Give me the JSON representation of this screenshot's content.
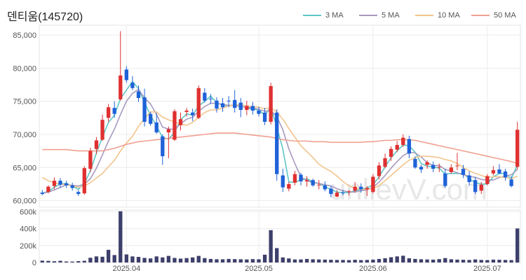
{
  "title": "덴티움(145720)",
  "watermark": "unlievV.com",
  "chart_data": [
    {
      "type": "candlestick",
      "title": "덴티움(145720)",
      "ylim": [
        59000,
        86500
      ],
      "yticks": [
        60000,
        65000,
        70000,
        75000,
        80000,
        85000
      ],
      "ytick_labels": [
        "60,000",
        "65,000",
        "70,000",
        "75,000",
        "80,000",
        "85,000"
      ],
      "xtick_labels": [
        "2025.04",
        "2025.05",
        "2025.06",
        "2025.07"
      ],
      "xtick_index": [
        14,
        36,
        55,
        74
      ],
      "legend": {
        "placement": "top-right",
        "items": [
          {
            "name": "3 MA",
            "color": "#5fc6c6"
          },
          {
            "name": "5 MA",
            "color": "#a89abf"
          },
          {
            "name": "10 MA",
            "color": "#f2c48c"
          },
          {
            "name": "50 MA",
            "color": "#f0a090"
          }
        ]
      },
      "colors": {
        "up": "#e03030",
        "down": "#1f62d8"
      },
      "candles": [
        [
          61200,
          61600,
          60800,
          61000
        ],
        [
          61300,
          62300,
          61100,
          62100
        ],
        [
          62200,
          63500,
          61700,
          63000
        ],
        [
          63000,
          63400,
          61900,
          62400
        ],
        [
          62600,
          63000,
          61900,
          62300
        ],
        [
          62300,
          62700,
          61500,
          61900
        ],
        [
          61300,
          61600,
          60700,
          61000
        ],
        [
          61100,
          65200,
          60900,
          64900
        ],
        [
          64800,
          68000,
          64300,
          67500
        ],
        [
          67800,
          69600,
          67000,
          69100
        ],
        [
          69200,
          73000,
          69000,
          72200
        ],
        [
          72500,
          74600,
          71900,
          74100
        ],
        [
          74000,
          75000,
          72500,
          73100
        ],
        [
          75300,
          85600,
          75100,
          78900
        ],
        [
          79800,
          80300,
          77800,
          78200
        ],
        [
          77800,
          78800,
          76700,
          77000
        ],
        [
          76500,
          77400,
          74900,
          75500
        ],
        [
          75600,
          76900,
          71200,
          71900
        ],
        [
          73100,
          73400,
          71300,
          71600
        ],
        [
          71800,
          73200,
          70100,
          70300
        ],
        [
          69700,
          70000,
          65400,
          66700
        ],
        [
          70300,
          71200,
          66400,
          70800
        ],
        [
          69200,
          73800,
          69000,
          73500
        ],
        [
          71400,
          73300,
          70600,
          72300
        ],
        [
          73400,
          74000,
          72700,
          73600
        ],
        [
          73300,
          73900,
          72000,
          72900
        ],
        [
          72500,
          77400,
          72300,
          77000
        ],
        [
          76300,
          77000,
          74800,
          75100
        ],
        [
          75400,
          76100,
          74600,
          75300
        ],
        [
          75100,
          75600,
          73300,
          73900
        ],
        [
          74700,
          75500,
          73400,
          74100
        ],
        [
          75100,
          75800,
          74100,
          75000
        ],
        [
          75200,
          76700,
          73300,
          74000
        ],
        [
          74800,
          75500,
          72600,
          73700
        ],
        [
          73700,
          75100,
          72900,
          74300
        ],
        [
          74300,
          74900,
          73000,
          73600
        ],
        [
          73600,
          74200,
          72700,
          73100
        ],
        [
          73300,
          74000,
          71400,
          71900
        ],
        [
          71900,
          77800,
          71500,
          77300
        ],
        [
          73300,
          73800,
          63000,
          64000
        ],
        [
          63800,
          64800,
          61300,
          62000
        ],
        [
          61800,
          62800,
          61400,
          62500
        ],
        [
          62700,
          64500,
          62300,
          64000
        ],
        [
          63900,
          64200,
          62300,
          62900
        ],
        [
          62900,
          63700,
          62100,
          63100
        ],
        [
          63100,
          63300,
          62100,
          62300
        ],
        [
          62300,
          63100,
          61700,
          62400
        ],
        [
          62300,
          62900,
          61400,
          61700
        ],
        [
          61800,
          62200,
          60500,
          61000
        ],
        [
          60600,
          61600,
          60500,
          61200
        ],
        [
          61200,
          61600,
          60800,
          61100
        ],
        [
          61300,
          61600,
          60800,
          61400
        ],
        [
          61500,
          62800,
          61200,
          62100
        ],
        [
          62100,
          62600,
          61200,
          61700
        ],
        [
          61700,
          62200,
          60700,
          61900
        ],
        [
          61300,
          64000,
          61100,
          63600
        ],
        [
          63700,
          65800,
          63200,
          65300
        ],
        [
          65100,
          67100,
          64900,
          66400
        ],
        [
          66600,
          68200,
          66000,
          67800
        ],
        [
          67700,
          69000,
          67300,
          68400
        ],
        [
          68400,
          70000,
          68100,
          69500
        ],
        [
          69300,
          69800,
          66400,
          67100
        ],
        [
          66300,
          66700,
          64800,
          65000
        ],
        [
          65100,
          65400,
          64200,
          64700
        ],
        [
          65400,
          66100,
          64800,
          65800
        ],
        [
          65400,
          65900,
          64300,
          64800
        ],
        [
          65000,
          65600,
          64300,
          65100
        ],
        [
          64100,
          64800,
          61900,
          62200
        ],
        [
          64300,
          65500,
          64100,
          65000
        ],
        [
          65200,
          67200,
          64600,
          65300
        ],
        [
          64800,
          65400,
          63400,
          63900
        ],
        [
          63800,
          64400,
          62300,
          62800
        ],
        [
          63100,
          63600,
          61000,
          61300
        ],
        [
          61500,
          62800,
          61000,
          62400
        ],
        [
          62500,
          64000,
          62300,
          63700
        ],
        [
          64100,
          65200,
          63800,
          64600
        ],
        [
          64700,
          65500,
          64000,
          64100
        ],
        [
          64400,
          64800,
          63000,
          63500
        ],
        [
          63200,
          63700,
          62000,
          62200
        ],
        [
          65100,
          71900,
          64700,
          70700
        ]
      ],
      "ma": {
        "3 MA": [
          61100,
          61400,
          62000,
          62500,
          62600,
          62200,
          61700,
          62600,
          64500,
          67200,
          69600,
          71800,
          72900,
          75400,
          76700,
          78000,
          76900,
          74800,
          72900,
          71300,
          69500,
          69300,
          70300,
          72200,
          73100,
          72900,
          74300,
          75000,
          75800,
          74800,
          74400,
          74300,
          74400,
          74300,
          74000,
          73800,
          73700,
          72900,
          74100,
          71100,
          67800,
          62800,
          62800,
          63100,
          63300,
          62800,
          62600,
          62100,
          61700,
          61300,
          61200,
          61200,
          61500,
          61700,
          61900,
          62400,
          63600,
          65100,
          66500,
          67500,
          68400,
          68300,
          67300,
          65600,
          65200,
          65100,
          64900,
          64000,
          64100,
          64100,
          64100,
          63300,
          62700,
          62500,
          62500,
          63600,
          64100,
          64100,
          63300,
          65400
        ],
        "5 MA": [
          61100,
          61300,
          61600,
          62000,
          62400,
          62300,
          62200,
          62500,
          63300,
          64900,
          66900,
          69000,
          70800,
          73000,
          75000,
          76200,
          76800,
          75500,
          74600,
          73000,
          71100,
          70800,
          70800,
          71600,
          72300,
          72600,
          73500,
          74200,
          74700,
          74700,
          74500,
          74400,
          74400,
          74200,
          74100,
          74000,
          73800,
          73500,
          73600,
          72700,
          70700,
          67800,
          65600,
          63600,
          63000,
          62700,
          62600,
          62400,
          62200,
          61800,
          61500,
          61300,
          61300,
          61500,
          61600,
          62000,
          62800,
          63800,
          64900,
          65900,
          66800,
          67300,
          67200,
          66600,
          65700,
          65300,
          65300,
          64700,
          64500,
          64200,
          63900,
          63700,
          63500,
          63200,
          63100,
          63100,
          63500,
          63700,
          63900,
          64700
        ],
        "10 MA": [
          63500,
          63000,
          62700,
          62500,
          62400,
          62200,
          62000,
          62200,
          62700,
          63400,
          64100,
          65100,
          66100,
          67500,
          68700,
          69700,
          71200,
          72400,
          73400,
          73400,
          72600,
          72200,
          71900,
          71500,
          71400,
          71800,
          72600,
          73300,
          73700,
          73700,
          74000,
          74300,
          74400,
          74500,
          74300,
          74200,
          74100,
          73900,
          74000,
          73400,
          72300,
          70900,
          69600,
          68300,
          67400,
          66500,
          65500,
          64900,
          64400,
          63700,
          62900,
          62200,
          61900,
          61700,
          61700,
          61800,
          62300,
          63000,
          63800,
          64600,
          65400,
          66100,
          66500,
          66700,
          66700,
          66600,
          66500,
          66200,
          66000,
          65600,
          65000,
          64500,
          64100,
          63800,
          63500,
          63600,
          63600,
          63500,
          63300,
          63700
        ],
        "50 MA": [
          67700,
          67700,
          67700,
          67700,
          67700,
          67600,
          67500,
          67500,
          67500,
          67500,
          67500,
          67700,
          67900,
          68200,
          68500,
          68700,
          68900,
          69000,
          69100,
          69200,
          69300,
          69400,
          69500,
          69600,
          69700,
          69800,
          69900,
          70000,
          70100,
          70200,
          70200,
          70200,
          70200,
          70100,
          70000,
          69900,
          69800,
          69700,
          69600,
          69400,
          69200,
          69100,
          69000,
          69000,
          69000,
          68900,
          68900,
          68900,
          68800,
          68800,
          68800,
          68800,
          68800,
          68800,
          68900,
          68900,
          69000,
          69100,
          69100,
          69200,
          69200,
          69200,
          69100,
          68900,
          68700,
          68500,
          68300,
          68100,
          67900,
          67700,
          67500,
          67300,
          67100,
          66900,
          66700,
          66500,
          66300,
          66100,
          65900,
          65600
        ]
      }
    },
    {
      "type": "bar",
      "title": "",
      "ylim": [
        0,
        620000
      ],
      "yticks": [
        0,
        200000,
        400000,
        600000
      ],
      "ytick_labels": [
        "0",
        "200k",
        "400k",
        "600k"
      ],
      "color": "#3d3f6b",
      "values": [
        22000,
        19000,
        15000,
        20000,
        12000,
        11000,
        16000,
        20000,
        56000,
        72000,
        68000,
        150000,
        88000,
        605000,
        95000,
        72000,
        66000,
        54000,
        48000,
        72000,
        60000,
        78000,
        54000,
        46000,
        52000,
        60000,
        78000,
        52000,
        42000,
        38000,
        38000,
        42000,
        40000,
        38000,
        36000,
        40000,
        38000,
        92000,
        382000,
        170000,
        60000,
        48000,
        36000,
        36000,
        42000,
        38000,
        36000,
        34000,
        32000,
        30000,
        30000,
        28000,
        32000,
        28000,
        30000,
        34000,
        42000,
        50000,
        62000,
        72000,
        80000,
        50000,
        42000,
        38000,
        36000,
        34000,
        40000,
        52000,
        38000,
        34000,
        32000,
        30000,
        36000,
        30000,
        28000,
        34000,
        32000,
        30000,
        28000,
        402000
      ]
    }
  ]
}
